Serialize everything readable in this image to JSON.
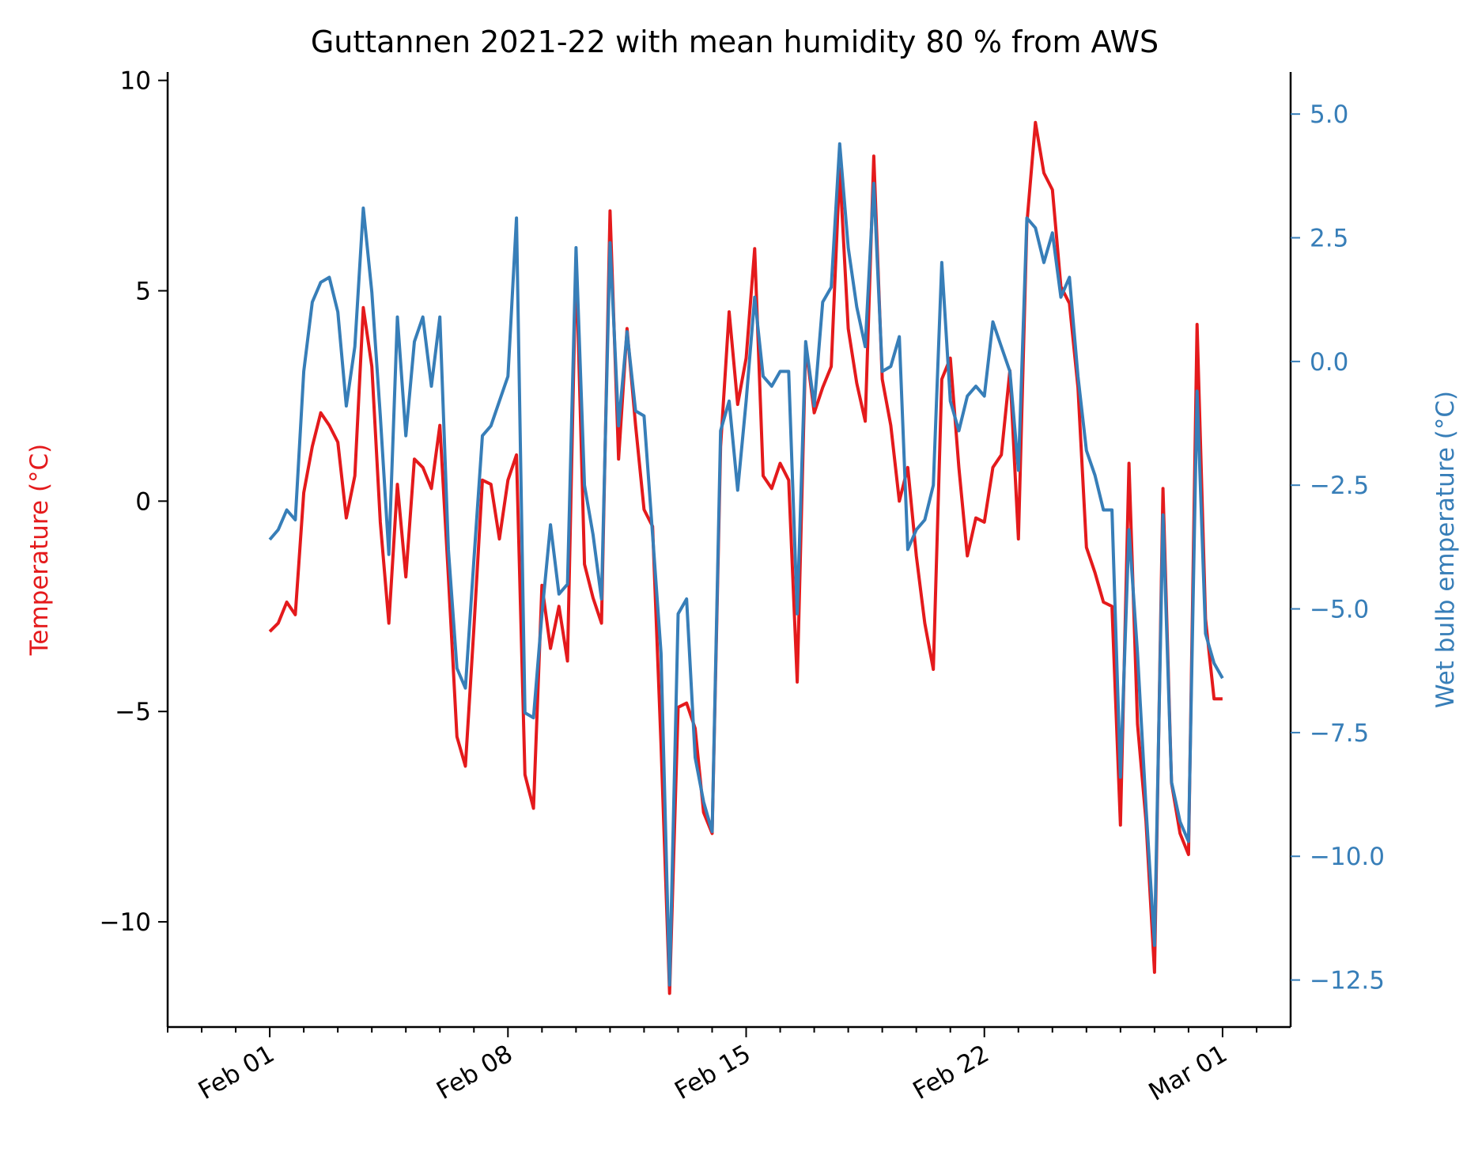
{
  "chart_data": {
    "type": "line",
    "title": "Guttannen 2021-22 with mean humidity 80 % from AWS",
    "xlabel": "",
    "x_axis": {
      "type": "date",
      "range": [
        "2022-01-29",
        "2022-03-03"
      ],
      "ticks": [
        {
          "date": "2022-02-01",
          "label": "Feb 01"
        },
        {
          "date": "2022-02-08",
          "label": "Feb 08"
        },
        {
          "date": "2022-02-15",
          "label": "Feb 15"
        },
        {
          "date": "2022-02-22",
          "label": "Feb 22"
        },
        {
          "date": "2022-03-01",
          "label": "Mar 01"
        }
      ],
      "minor_ticks": [
        "2022-01-29",
        "2022-01-30",
        "2022-01-31",
        "2022-02-02",
        "2022-02-03",
        "2022-02-04",
        "2022-02-05",
        "2022-02-06",
        "2022-02-07",
        "2022-02-09",
        "2022-02-10",
        "2022-02-11",
        "2022-02-12",
        "2022-02-13",
        "2022-02-14",
        "2022-02-16",
        "2022-02-17",
        "2022-02-18",
        "2022-02-19",
        "2022-02-20",
        "2022-02-21",
        "2022-02-23",
        "2022-02-24",
        "2022-02-25",
        "2022-02-26",
        "2022-02-27",
        "2022-02-28",
        "2022-03-02"
      ]
    },
    "y_left": {
      "label": "Temperature (°C)",
      "color": "#e41a1c",
      "ylim": [
        -12.5,
        10.2
      ],
      "ticks": [
        10,
        5,
        0,
        -5,
        -10
      ],
      "tick_labels": [
        "10",
        "5",
        "0",
        "−5",
        "−10"
      ]
    },
    "y_right": {
      "label": "Wet bulb emperature (°C)",
      "color": "#377eb8",
      "ylim": [
        -13.45,
        5.85
      ],
      "ticks": [
        5.0,
        2.5,
        0.0,
        -2.5,
        -5.0,
        -7.5,
        -10.0,
        -12.5
      ],
      "tick_labels": [
        "5.0",
        "2.5",
        "0.0",
        "−2.5",
        "−5.0",
        "−7.5",
        "−10.0",
        "−12.5"
      ]
    },
    "grid": false,
    "legend": "none",
    "series": [
      {
        "axis": "left",
        "color": "#e41a1c",
        "x": [
          "2022-02-01T00:00",
          "2022-02-01T06:00",
          "2022-02-01T12:00",
          "2022-02-01T18:00",
          "2022-02-02T00:00",
          "2022-02-02T06:00",
          "2022-02-02T12:00",
          "2022-02-02T18:00",
          "2022-02-03T00:00",
          "2022-02-03T06:00",
          "2022-02-03T12:00",
          "2022-02-03T18:00",
          "2022-02-04T00:00",
          "2022-02-04T06:00",
          "2022-02-04T12:00",
          "2022-02-04T18:00",
          "2022-02-05T00:00",
          "2022-02-05T06:00",
          "2022-02-05T12:00",
          "2022-02-05T18:00",
          "2022-02-06T00:00",
          "2022-02-06T06:00",
          "2022-02-06T12:00",
          "2022-02-06T18:00",
          "2022-02-07T00:00",
          "2022-02-07T06:00",
          "2022-02-07T12:00",
          "2022-02-07T18:00",
          "2022-02-08T00:00",
          "2022-02-08T06:00",
          "2022-02-08T12:00",
          "2022-02-08T18:00",
          "2022-02-09T00:00",
          "2022-02-09T06:00",
          "2022-02-09T12:00",
          "2022-02-09T18:00",
          "2022-02-10T00:00",
          "2022-02-10T06:00",
          "2022-02-10T12:00",
          "2022-02-10T18:00",
          "2022-02-11T00:00",
          "2022-02-11T06:00",
          "2022-02-11T12:00",
          "2022-02-11T18:00",
          "2022-02-12T00:00",
          "2022-02-12T06:00",
          "2022-02-12T12:00",
          "2022-02-12T18:00",
          "2022-02-13T00:00",
          "2022-02-13T06:00",
          "2022-02-13T12:00",
          "2022-02-13T18:00",
          "2022-02-14T00:00",
          "2022-02-14T06:00",
          "2022-02-14T12:00",
          "2022-02-14T18:00",
          "2022-02-15T00:00",
          "2022-02-15T06:00",
          "2022-02-15T12:00",
          "2022-02-15T18:00",
          "2022-02-16T00:00",
          "2022-02-16T06:00",
          "2022-02-16T12:00",
          "2022-02-16T18:00",
          "2022-02-17T00:00",
          "2022-02-17T06:00",
          "2022-02-17T12:00",
          "2022-02-17T18:00",
          "2022-02-18T00:00",
          "2022-02-18T06:00",
          "2022-02-18T12:00",
          "2022-02-18T18:00",
          "2022-02-19T00:00",
          "2022-02-19T06:00",
          "2022-02-19T12:00",
          "2022-02-19T18:00",
          "2022-02-20T00:00",
          "2022-02-20T06:00",
          "2022-02-20T12:00",
          "2022-02-20T18:00",
          "2022-02-21T00:00",
          "2022-02-21T06:00",
          "2022-02-21T12:00",
          "2022-02-21T18:00",
          "2022-02-22T00:00",
          "2022-02-22T06:00",
          "2022-02-22T12:00",
          "2022-02-22T18:00",
          "2022-02-23T00:00",
          "2022-02-23T06:00",
          "2022-02-23T12:00",
          "2022-02-23T18:00",
          "2022-02-24T00:00",
          "2022-02-24T06:00",
          "2022-02-24T12:00",
          "2022-02-24T18:00",
          "2022-02-25T00:00",
          "2022-02-25T06:00",
          "2022-02-25T12:00",
          "2022-02-25T18:00",
          "2022-02-26T00:00",
          "2022-02-26T06:00",
          "2022-02-26T12:00",
          "2022-02-26T18:00",
          "2022-02-27T00:00",
          "2022-02-27T06:00",
          "2022-02-27T12:00",
          "2022-02-27T18:00",
          "2022-02-28T00:00",
          "2022-02-28T06:00",
          "2022-02-28T12:00",
          "2022-02-28T18:00",
          "2022-03-01T00:00"
        ],
        "values": [
          -3.1,
          -2.9,
          -2.4,
          -2.7,
          0.2,
          1.3,
          2.1,
          1.8,
          1.4,
          -0.4,
          0.6,
          4.6,
          3.2,
          -0.5,
          -2.9,
          0.4,
          -1.8,
          1.0,
          0.8,
          0.3,
          1.8,
          -1.8,
          -5.6,
          -6.3,
          -3.0,
          0.5,
          0.4,
          -0.9,
          0.5,
          1.1,
          -6.5,
          -7.3,
          -2.0,
          -3.5,
          -2.5,
          -3.8,
          5.8,
          -1.5,
          -2.3,
          -2.9,
          6.9,
          1.0,
          4.1,
          1.8,
          -0.2,
          -0.6,
          -5.8,
          -11.7,
          -4.9,
          -4.8,
          -5.4,
          -7.4,
          -7.9,
          1.3,
          4.5,
          2.3,
          3.4,
          6.0,
          0.6,
          0.3,
          0.9,
          0.5,
          -4.3,
          3.7,
          2.1,
          2.7,
          3.2,
          7.9,
          4.1,
          2.8,
          1.9,
          8.2,
          2.9,
          1.8,
          0.0,
          0.8,
          -1.3,
          -2.9,
          -4.0,
          2.9,
          3.4,
          0.8,
          -1.3,
          -0.4,
          -0.5,
          0.8,
          1.1,
          3.1,
          -0.9,
          6.6,
          9.0,
          7.8,
          7.4,
          5.1,
          4.7,
          2.7,
          -1.1,
          -1.7,
          -2.4,
          -2.5,
          -7.7,
          0.9,
          -5.3,
          -7.6,
          -11.2,
          0.3,
          -6.7,
          -7.9,
          -8.4,
          4.2,
          -2.8,
          -4.7,
          -4.7
        ]
      },
      {
        "axis": "right",
        "color": "#377eb8",
        "x": [
          "2022-02-01T00:00",
          "2022-02-01T06:00",
          "2022-02-01T12:00",
          "2022-02-01T18:00",
          "2022-02-02T00:00",
          "2022-02-02T06:00",
          "2022-02-02T12:00",
          "2022-02-02T18:00",
          "2022-02-03T00:00",
          "2022-02-03T06:00",
          "2022-02-03T12:00",
          "2022-02-03T18:00",
          "2022-02-04T00:00",
          "2022-02-04T06:00",
          "2022-02-04T12:00",
          "2022-02-04T18:00",
          "2022-02-05T00:00",
          "2022-02-05T06:00",
          "2022-02-05T12:00",
          "2022-02-05T18:00",
          "2022-02-06T00:00",
          "2022-02-06T06:00",
          "2022-02-06T12:00",
          "2022-02-06T18:00",
          "2022-02-07T00:00",
          "2022-02-07T06:00",
          "2022-02-07T12:00",
          "2022-02-07T18:00",
          "2022-02-08T00:00",
          "2022-02-08T06:00",
          "2022-02-08T12:00",
          "2022-02-08T18:00",
          "2022-02-09T00:00",
          "2022-02-09T06:00",
          "2022-02-09T12:00",
          "2022-02-09T18:00",
          "2022-02-10T00:00",
          "2022-02-10T06:00",
          "2022-02-10T12:00",
          "2022-02-10T18:00",
          "2022-02-11T00:00",
          "2022-02-11T06:00",
          "2022-02-11T12:00",
          "2022-02-11T18:00",
          "2022-02-12T00:00",
          "2022-02-12T06:00",
          "2022-02-12T12:00",
          "2022-02-12T18:00",
          "2022-02-13T00:00",
          "2022-02-13T06:00",
          "2022-02-13T12:00",
          "2022-02-13T18:00",
          "2022-02-14T00:00",
          "2022-02-14T06:00",
          "2022-02-14T12:00",
          "2022-02-14T18:00",
          "2022-02-15T00:00",
          "2022-02-15T06:00",
          "2022-02-15T12:00",
          "2022-02-15T18:00",
          "2022-02-16T00:00",
          "2022-02-16T06:00",
          "2022-02-16T12:00",
          "2022-02-16T18:00",
          "2022-02-17T00:00",
          "2022-02-17T06:00",
          "2022-02-17T12:00",
          "2022-02-17T18:00",
          "2022-02-18T00:00",
          "2022-02-18T06:00",
          "2022-02-18T12:00",
          "2022-02-18T18:00",
          "2022-02-19T00:00",
          "2022-02-19T06:00",
          "2022-02-19T12:00",
          "2022-02-19T18:00",
          "2022-02-20T00:00",
          "2022-02-20T06:00",
          "2022-02-20T12:00",
          "2022-02-20T18:00",
          "2022-02-21T00:00",
          "2022-02-21T06:00",
          "2022-02-21T12:00",
          "2022-02-21T18:00",
          "2022-02-22T00:00",
          "2022-02-22T06:00",
          "2022-02-22T12:00",
          "2022-02-22T18:00",
          "2022-02-23T00:00",
          "2022-02-23T06:00",
          "2022-02-23T12:00",
          "2022-02-23T18:00",
          "2022-02-24T00:00",
          "2022-02-24T06:00",
          "2022-02-24T12:00",
          "2022-02-24T18:00",
          "2022-02-25T00:00",
          "2022-02-25T06:00",
          "2022-02-25T12:00",
          "2022-02-25T18:00",
          "2022-02-26T00:00",
          "2022-02-26T06:00",
          "2022-02-26T12:00",
          "2022-02-26T18:00",
          "2022-02-27T00:00",
          "2022-02-27T06:00",
          "2022-02-27T12:00",
          "2022-02-27T18:00",
          "2022-02-28T00:00",
          "2022-02-28T06:00",
          "2022-02-28T12:00",
          "2022-02-28T18:00",
          "2022-03-01T00:00"
        ],
        "values": [
          -3.6,
          -3.4,
          -3.0,
          -3.2,
          -0.2,
          1.2,
          1.6,
          1.7,
          1.0,
          -0.9,
          0.3,
          3.1,
          1.4,
          -1.1,
          -3.9,
          0.9,
          -1.5,
          0.4,
          0.9,
          -0.5,
          0.9,
          -3.8,
          -6.2,
          -6.6,
          -4.0,
          -1.5,
          -1.3,
          -0.8,
          -0.3,
          2.9,
          -7.1,
          -7.2,
          -5.1,
          -3.3,
          -4.7,
          -4.5,
          2.3,
          -2.5,
          -3.5,
          -4.8,
          2.4,
          -1.3,
          0.6,
          -1.0,
          -1.1,
          -3.5,
          -5.9,
          -12.6,
          -5.1,
          -4.8,
          -8.0,
          -8.9,
          -9.5,
          -1.4,
          -0.8,
          -2.6,
          -0.8,
          1.3,
          -0.3,
          -0.5,
          -0.2,
          -0.2,
          -5.1,
          0.4,
          -0.9,
          1.2,
          1.5,
          4.4,
          2.3,
          1.1,
          0.3,
          3.6,
          -0.2,
          -0.1,
          0.5,
          -3.8,
          -3.4,
          -3.2,
          -2.5,
          2.0,
          -0.8,
          -1.4,
          -0.7,
          -0.5,
          -0.7,
          0.8,
          0.3,
          -0.2,
          -2.2,
          2.9,
          2.7,
          2.0,
          2.6,
          1.3,
          1.7,
          -0.3,
          -1.8,
          -2.3,
          -3.0,
          -3.0,
          -8.4,
          -3.4,
          -5.9,
          -9.0,
          -11.8,
          -3.1,
          -8.5,
          -9.3,
          -9.7,
          -0.6,
          -5.5,
          -6.1,
          -6.4
        ]
      }
    ]
  }
}
